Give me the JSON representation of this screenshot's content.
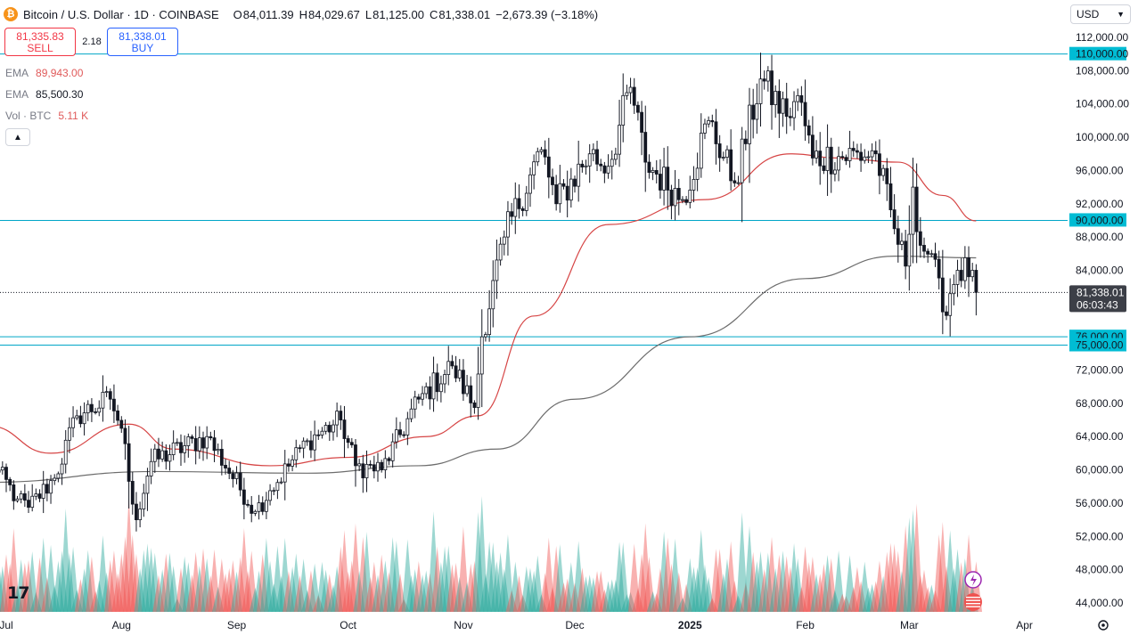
{
  "header": {
    "coin_glyph": "₿",
    "title": "Bitcoin / U.S. Dollar · 1D · COINBASE",
    "open_label": "O",
    "open": "84,011.39",
    "high_label": "H",
    "high": "84,029.67",
    "low_label": "L",
    "low": "81,125.00",
    "close_label": "C",
    "close": "81,338.01",
    "change": "−2,673.39 (−3.18%)"
  },
  "trade": {
    "sell_price": "81,335.83",
    "sell_label": "SELL",
    "spread": "2.18",
    "buy_price": "81,338.01",
    "buy_label": "BUY"
  },
  "indicators": [
    {
      "name": "EMA",
      "value": "89,943.00",
      "color": "#e05a5a"
    },
    {
      "name": "EMA",
      "value": "85,500.30",
      "color": "#787b86"
    },
    {
      "name": "Vol · BTC",
      "value": "5.11 K",
      "color": "#e05a5a"
    }
  ],
  "currency": "USD",
  "logo": "17",
  "chart_data": {
    "type": "candlestick",
    "symbol": "BTCUSD",
    "interval": "1D",
    "exchange": "COINBASE",
    "x_ticks": [
      "Jul",
      "Aug",
      "Sep",
      "Oct",
      "Nov",
      "Dec",
      "2025",
      "Feb",
      "Mar",
      "Apr"
    ],
    "y_ticks": [
      "112,000.00",
      "108,000.00",
      "104,000.00",
      "100,000.00",
      "96,000.00",
      "92,000.00",
      "88,000.00",
      "84,000.00",
      "80,000.00",
      "76,000.00",
      "72,000.00",
      "68,000.00",
      "64,000.00",
      "60,000.00",
      "56,000.00",
      "52,000.00",
      "48,000.00",
      "44,000.00"
    ],
    "ylim": [
      43000,
      113000
    ],
    "horizontal_levels": [
      {
        "label": "110,000.00",
        "value": 110000
      },
      {
        "label": "90,000.00",
        "value": 90000
      },
      {
        "label": "76,000.00",
        "value": 76000
      },
      {
        "label": "75,000.00",
        "value": 75000
      }
    ],
    "last_price": {
      "label": "81,338.01",
      "value": 81338.01,
      "countdown": "06:03:43"
    },
    "keypoints": [
      {
        "t": "Jun 26",
        "p": 61500
      },
      {
        "t": "Jul 4",
        "p": 56500
      },
      {
        "t": "Jul 7",
        "p": 55500
      },
      {
        "t": "Jul 14",
        "p": 59000
      },
      {
        "t": "Jul 20",
        "p": 66500
      },
      {
        "t": "Jul 29",
        "p": 68500
      },
      {
        "t": "Aug 1",
        "p": 65000
      },
      {
        "t": "Aug 5",
        "p": 54000
      },
      {
        "t": "Aug 9",
        "p": 61000
      },
      {
        "t": "Aug 24",
        "p": 64000
      },
      {
        "t": "Sep 6",
        "p": 55000
      },
      {
        "t": "Sep 10",
        "p": 57500
      },
      {
        "t": "Sep 20",
        "p": 63500
      },
      {
        "t": "Sep 29",
        "p": 66000
      },
      {
        "t": "Oct 3",
        "p": 60500
      },
      {
        "t": "Oct 10",
        "p": 60000
      },
      {
        "t": "Oct 20",
        "p": 68500
      },
      {
        "t": "Oct 29",
        "p": 72500
      },
      {
        "t": "Nov 4",
        "p": 67500
      },
      {
        "t": "Nov 6",
        "p": 76000
      },
      {
        "t": "Nov 12",
        "p": 88000
      },
      {
        "t": "Nov 22",
        "p": 98500
      },
      {
        "t": "Nov 26",
        "p": 92000
      },
      {
        "t": "Dec 5",
        "p": 98000
      },
      {
        "t": "Dec 10",
        "p": 96500
      },
      {
        "t": "Dec 16",
        "p": 106000
      },
      {
        "t": "Dec 20",
        "p": 97000
      },
      {
        "t": "Dec 30",
        "p": 92500
      },
      {
        "t": "Jan 6",
        "p": 102000
      },
      {
        "t": "Jan 13",
        "p": 94500
      },
      {
        "t": "Jan 20",
        "p": 107000
      },
      {
        "t": "Jan 27",
        "p": 102500
      },
      {
        "t": "Jan 30",
        "p": 105000
      },
      {
        "t": "Feb 3",
        "p": 97500
      },
      {
        "t": "Feb 20",
        "p": 98000
      },
      {
        "t": "Feb 25",
        "p": 89000
      },
      {
        "t": "Feb 28",
        "p": 84500
      },
      {
        "t": "Mar 2",
        "p": 94000
      },
      {
        "t": "Mar 4",
        "p": 87000
      },
      {
        "t": "Mar 7",
        "p": 86000
      },
      {
        "t": "Mar 10",
        "p": 79000
      },
      {
        "t": "Mar 14",
        "p": 84000
      },
      {
        "t": "Mar 18",
        "p": 84000
      },
      {
        "t": "Mar 19",
        "p": 81338
      }
    ],
    "ema_fast": [
      {
        "t": "Jun 26",
        "p": 65300
      },
      {
        "t": "Jul 13",
        "p": 62000
      },
      {
        "t": "Aug 3",
        "p": 65500
      },
      {
        "t": "Aug 15",
        "p": 62500
      },
      {
        "t": "Sep 10",
        "p": 60500
      },
      {
        "t": "Oct 1",
        "p": 61500
      },
      {
        "t": "Oct 22",
        "p": 64000
      },
      {
        "t": "Nov 5",
        "p": 66500
      },
      {
        "t": "Nov 20",
        "p": 78500
      },
      {
        "t": "Dec 10",
        "p": 89500
      },
      {
        "t": "Jan 5",
        "p": 92500
      },
      {
        "t": "Jan 28",
        "p": 98000
      },
      {
        "t": "Feb 10",
        "p": 97500
      },
      {
        "t": "Feb 26",
        "p": 97000
      },
      {
        "t": "Mar 10",
        "p": 93000
      },
      {
        "t": "Mar 19",
        "p": 89943
      }
    ],
    "ema_slow": [
      {
        "t": "Jun 26",
        "p": 58500
      },
      {
        "t": "Aug 10",
        "p": 59800
      },
      {
        "t": "Sep 20",
        "p": 59600
      },
      {
        "t": "Oct 20",
        "p": 60500
      },
      {
        "t": "Nov 10",
        "p": 62500
      },
      {
        "t": "Dec 1",
        "p": 68500
      },
      {
        "t": "Jan 1",
        "p": 76000
      },
      {
        "t": "Feb 1",
        "p": 83000
      },
      {
        "t": "Feb 25",
        "p": 85700
      },
      {
        "t": "Mar 19",
        "p": 85500
      }
    ]
  }
}
